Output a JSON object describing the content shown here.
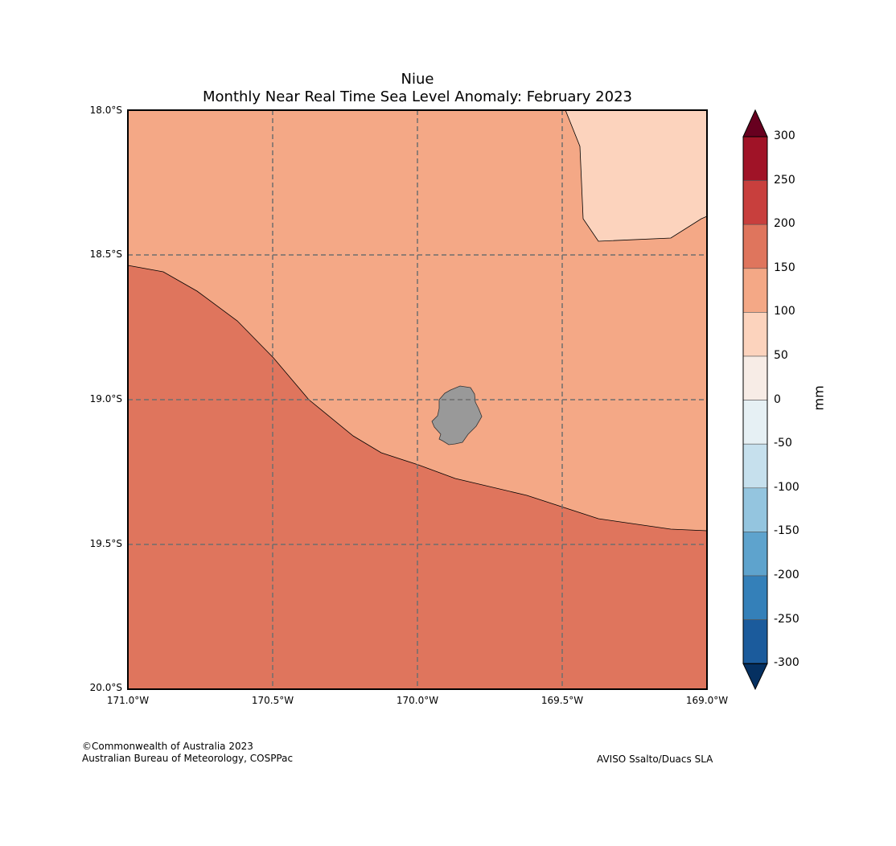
{
  "title": {
    "line1": "Niue",
    "line2": "Monthly Near Real Time Sea Level Anomaly: February 2023"
  },
  "axes": {
    "lat_ticks": [
      "18.0°S",
      "18.5°S",
      "19.0°S",
      "19.5°S",
      "20.0°S"
    ],
    "lon_ticks": [
      "171.0°W",
      "170.5°W",
      "170.0°W",
      "169.5°W",
      "169.0°W"
    ]
  },
  "colorbar": {
    "unit": "mm",
    "ticks": [
      "300",
      "250",
      "200",
      "150",
      "100",
      "50",
      "0",
      "-50",
      "-100",
      "-150",
      "-200",
      "-250",
      "-300"
    ],
    "colors": [
      "#a01327",
      "#c83f3d",
      "#df755d",
      "#f4a886",
      "#fcd3bd",
      "#f7ece6",
      "#e6f0f4",
      "#c6e0ed",
      "#94c5df",
      "#5ea3cd",
      "#3480b9",
      "#1b5b9c"
    ],
    "over_color": "#67001f",
    "under_color": "#053061"
  },
  "map": {
    "region_colors": {
      "band_100_150": "#f4a886",
      "band_150_200": "#df755d",
      "band_50_100": "#fcd3bd",
      "land": "#999999"
    }
  },
  "footer": {
    "copyright": "©Commonwealth of Australia 2023",
    "agency": "Australian Bureau of Meteorology, COSPPac",
    "source": "AVISO Ssalto/Duacs SLA"
  }
}
